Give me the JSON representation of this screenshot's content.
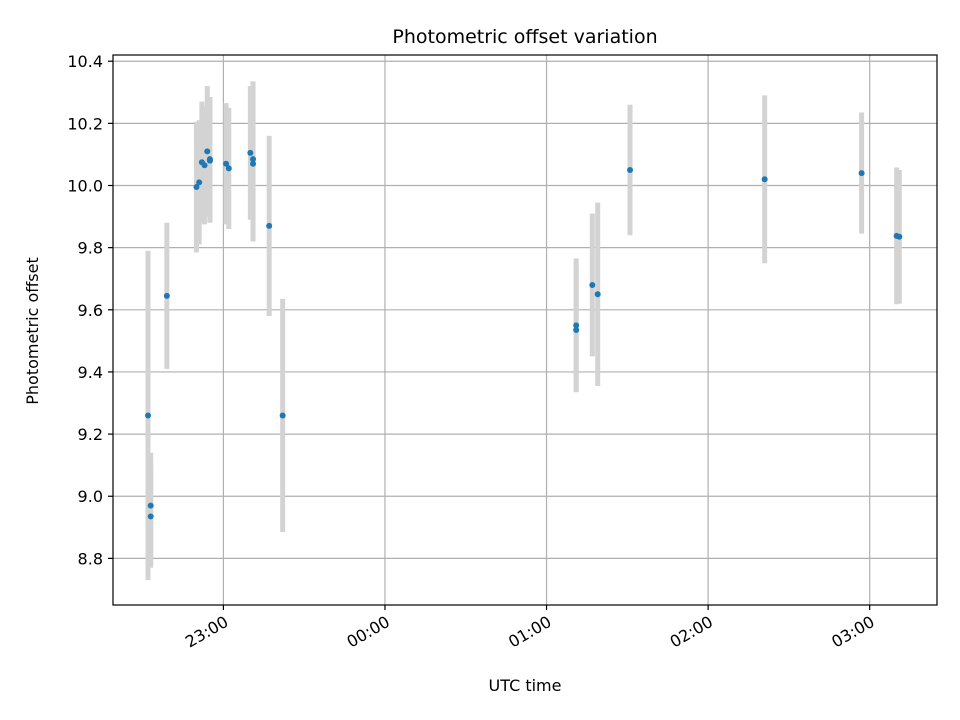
{
  "chart_data": {
    "type": "scatter",
    "title": "Photometric offset variation",
    "xlabel": "UTC time",
    "ylabel": "Photometric offset",
    "x_ticks": [
      "23:00",
      "00:00",
      "01:00",
      "02:00",
      "03:00"
    ],
    "y_ticks": [
      "8.8",
      "9.0",
      "9.2",
      "9.4",
      "9.6",
      "9.8",
      "10.0",
      "10.2",
      "10.4"
    ],
    "xlim": [
      "22:19",
      "03:25"
    ],
    "ylim": [
      8.65,
      10.42
    ],
    "grid": true,
    "point_color": "#1f77b4",
    "errorbar_color": "#d3d3d3",
    "points": [
      {
        "x": "22:32",
        "y": 9.26,
        "err": 0.53
      },
      {
        "x": "22:33",
        "y": 8.935,
        "err": 0.165
      },
      {
        "x": "22:33",
        "y": 8.97,
        "err": 0.17
      },
      {
        "x": "22:39",
        "y": 9.645,
        "err": 0.235
      },
      {
        "x": "22:50",
        "y": 9.995,
        "err": 0.21
      },
      {
        "x": "22:51",
        "y": 10.01,
        "err": 0.2
      },
      {
        "x": "22:52",
        "y": 10.075,
        "err": 0.195
      },
      {
        "x": "22:53",
        "y": 10.065,
        "err": 0.19
      },
      {
        "x": "22:54",
        "y": 10.11,
        "err": 0.21
      },
      {
        "x": "22:55",
        "y": 10.08,
        "err": 0.2
      },
      {
        "x": "22:55",
        "y": 10.085,
        "err": 0.2
      },
      {
        "x": "23:01",
        "y": 10.07,
        "err": 0.195
      },
      {
        "x": "23:02",
        "y": 10.055,
        "err": 0.195
      },
      {
        "x": "23:10",
        "y": 10.105,
        "err": 0.215
      },
      {
        "x": "23:11",
        "y": 10.07,
        "err": 0.25
      },
      {
        "x": "23:11",
        "y": 10.085,
        "err": 0.25
      },
      {
        "x": "23:17",
        "y": 9.87,
        "err": 0.29
      },
      {
        "x": "23:22",
        "y": 9.26,
        "err": 0.375
      },
      {
        "x": "01:11",
        "y": 9.55,
        "err": 0.215
      },
      {
        "x": "01:11",
        "y": 9.535,
        "err": 0.2
      },
      {
        "x": "01:17",
        "y": 9.68,
        "err": 0.23
      },
      {
        "x": "01:19",
        "y": 9.65,
        "err": 0.295
      },
      {
        "x": "01:31",
        "y": 10.05,
        "err": 0.21
      },
      {
        "x": "02:21",
        "y": 10.02,
        "err": 0.27
      },
      {
        "x": "02:57",
        "y": 10.04,
        "err": 0.195
      },
      {
        "x": "03:10",
        "y": 9.838,
        "err": 0.22
      },
      {
        "x": "03:11",
        "y": 9.835,
        "err": 0.215
      }
    ]
  }
}
